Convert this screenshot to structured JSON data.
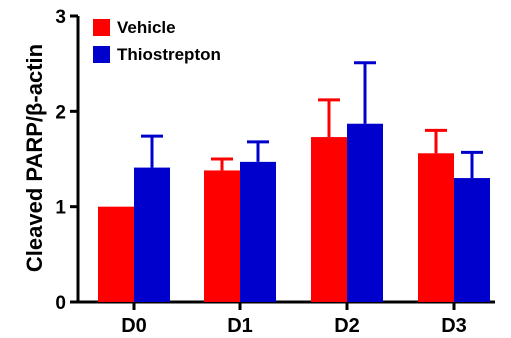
{
  "chart_data": {
    "type": "bar",
    "categories": [
      "D0",
      "D1",
      "D2",
      "D3"
    ],
    "series": [
      {
        "name": "Vehicle",
        "color": "#ff0000",
        "values": [
          1.0,
          1.38,
          1.73,
          1.56
        ],
        "errors": [
          0.0,
          0.12,
          0.39,
          0.24
        ]
      },
      {
        "name": "Thiostrepton",
        "color": "#0000cc",
        "values": [
          1.41,
          1.47,
          1.87,
          1.3
        ],
        "errors": [
          0.33,
          0.21,
          0.64,
          0.27
        ]
      }
    ],
    "ylabel": "Cleaved PARP/β-actin",
    "xlabel": "",
    "ylim": [
      0,
      3
    ],
    "yticks": [
      0,
      1,
      2,
      3
    ],
    "grid": false,
    "legend_position": "top-left"
  }
}
